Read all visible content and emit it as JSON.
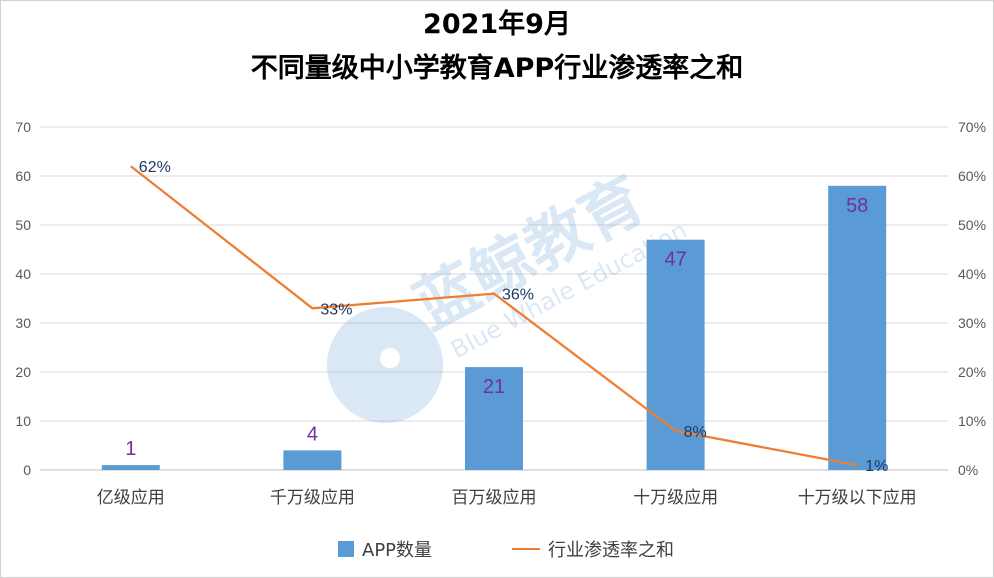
{
  "chart_data": {
    "type": "bar",
    "title": "2021年9月",
    "subtitle": "不同量级中小学教育APP行业渗透率之和",
    "categories": [
      "亿级应用",
      "千万级应用",
      "百万级应用",
      "十万级应用",
      "十万级以下应用"
    ],
    "series": [
      {
        "name": "APP数量",
        "type": "bar",
        "axis": "left",
        "values": [
          1,
          4,
          21,
          47,
          58
        ],
        "labels": [
          "1",
          "4",
          "21",
          "47",
          "58"
        ],
        "color": "#5b9bd5"
      },
      {
        "name": "行业渗透率之和",
        "type": "line",
        "axis": "right",
        "values": [
          62,
          33,
          36,
          8,
          1
        ],
        "labels": [
          "62%",
          "33%",
          "36%",
          "8%",
          "1%"
        ],
        "color": "#ed7d31"
      }
    ],
    "ylim": [
      0,
      70
    ],
    "yticks": [
      "0",
      "10",
      "20",
      "30",
      "40",
      "50",
      "60",
      "70"
    ],
    "y2lim": [
      0,
      70
    ],
    "y2ticks": [
      "0%",
      "10%",
      "20%",
      "30%",
      "40%",
      "50%",
      "60%",
      "70%"
    ],
    "grid": true,
    "legend": "bottom",
    "watermark": {
      "text": "蓝鲸教育",
      "subtext": "Blue Whale Education"
    }
  }
}
